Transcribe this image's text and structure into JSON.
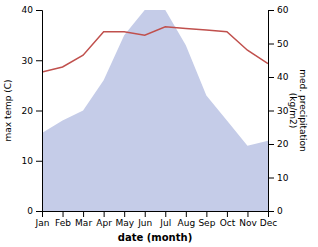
{
  "chart_data": {
    "type": "line",
    "categories": [
      "Jan",
      "Feb",
      "Mar",
      "Apr",
      "May",
      "Jun",
      "Jul",
      "Aug",
      "Sep",
      "Oct",
      "Nov",
      "Dec"
    ],
    "series": [
      {
        "type": "area",
        "color": "#c5cce8",
        "values": [
          15.5,
          18.0,
          20.0,
          26.0,
          35.0,
          40.0,
          40.0,
          33.0,
          23.0,
          18.0,
          13.0,
          14.0
        ]
      },
      {
        "type": "line",
        "color": "#c0504d",
        "axis": "y2",
        "values": [
          41.5,
          43.0,
          46.5,
          53.5,
          53.5,
          52.5,
          55.0,
          54.5,
          54.0,
          53.5,
          48.0,
          44.0
        ]
      }
    ],
    "xlabel": "date (month)",
    "ylabel": "max temp (C)",
    "y2label": "med. precipitation\n(kg/m2)",
    "ylim": [
      0,
      40
    ],
    "yticks": [
      0,
      10,
      20,
      30,
      40
    ],
    "y2lim": [
      0,
      60
    ],
    "y2ticks": [
      0,
      10,
      20,
      30,
      40,
      50,
      60
    ]
  }
}
